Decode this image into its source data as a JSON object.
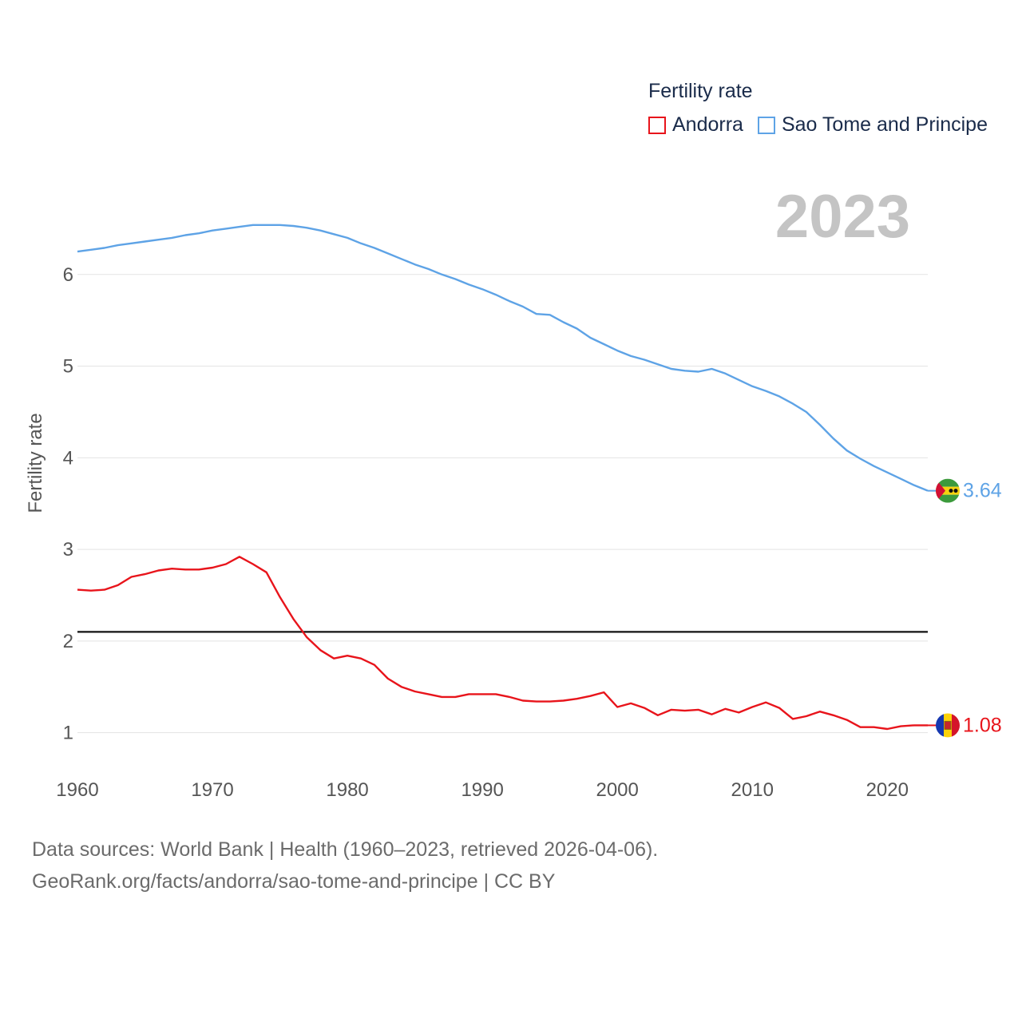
{
  "legend": {
    "title": "Fertility rate",
    "items": [
      {
        "label": "Andorra",
        "color": "#e8141b"
      },
      {
        "label": "Sao Tome and Principe",
        "color": "#5ea3e6"
      }
    ]
  },
  "current_year": "2023",
  "source": {
    "line1": "Data sources: World Bank | Health (1960–2023, retrieved 2026-04-06).",
    "line2": "GeoRank.org/facts/andorra/sao-tome-and-principe | CC BY"
  },
  "chart_data": {
    "type": "line",
    "title": "Fertility rate",
    "xlabel": "",
    "ylabel": "Fertility rate",
    "xlim": [
      1960,
      2023
    ],
    "ylim": [
      0.5,
      6.8
    ],
    "x_ticks": [
      1960,
      1970,
      1980,
      1990,
      2000,
      2010,
      2020
    ],
    "y_ticks": [
      1,
      2,
      3,
      4,
      5,
      6
    ],
    "grid": true,
    "reference_line": {
      "value": 2.1,
      "color": "#111111"
    },
    "x": [
      1960,
      1961,
      1962,
      1963,
      1964,
      1965,
      1966,
      1967,
      1968,
      1969,
      1970,
      1971,
      1972,
      1973,
      1974,
      1975,
      1976,
      1977,
      1978,
      1979,
      1980,
      1981,
      1982,
      1983,
      1984,
      1985,
      1986,
      1987,
      1988,
      1989,
      1990,
      1991,
      1992,
      1993,
      1994,
      1995,
      1996,
      1997,
      1998,
      1999,
      2000,
      2001,
      2002,
      2003,
      2004,
      2005,
      2006,
      2007,
      2008,
      2009,
      2010,
      2011,
      2012,
      2013,
      2014,
      2015,
      2016,
      2017,
      2018,
      2019,
      2020,
      2021,
      2022,
      2023
    ],
    "series": [
      {
        "name": "Andorra",
        "color": "#e8141b",
        "end_label": "1.08",
        "values": [
          2.56,
          2.55,
          2.56,
          2.61,
          2.7,
          2.73,
          2.77,
          2.79,
          2.78,
          2.78,
          2.8,
          2.84,
          2.92,
          2.84,
          2.75,
          2.48,
          2.24,
          2.04,
          1.9,
          1.81,
          1.84,
          1.81,
          1.74,
          1.59,
          1.5,
          1.45,
          1.42,
          1.39,
          1.39,
          1.42,
          1.42,
          1.42,
          1.39,
          1.35,
          1.34,
          1.34,
          1.35,
          1.37,
          1.4,
          1.44,
          1.28,
          1.32,
          1.27,
          1.19,
          1.25,
          1.24,
          1.25,
          1.2,
          1.26,
          1.22,
          1.28,
          1.33,
          1.27,
          1.15,
          1.18,
          1.23,
          1.19,
          1.14,
          1.06,
          1.06,
          1.04,
          1.07,
          1.08,
          1.08
        ]
      },
      {
        "name": "Sao Tome and Principe",
        "color": "#5ea3e6",
        "end_label": "3.64",
        "values": [
          6.25,
          6.27,
          6.29,
          6.32,
          6.34,
          6.36,
          6.38,
          6.4,
          6.43,
          6.45,
          6.48,
          6.5,
          6.52,
          6.54,
          6.54,
          6.54,
          6.53,
          6.51,
          6.48,
          6.44,
          6.4,
          6.34,
          6.29,
          6.23,
          6.17,
          6.11,
          6.06,
          6.0,
          5.95,
          5.89,
          5.84,
          5.78,
          5.71,
          5.65,
          5.57,
          5.56,
          5.48,
          5.41,
          5.31,
          5.24,
          5.17,
          5.11,
          5.07,
          5.02,
          4.97,
          4.95,
          4.94,
          4.97,
          4.92,
          4.85,
          4.78,
          4.73,
          4.67,
          4.59,
          4.5,
          4.36,
          4.21,
          4.08,
          3.99,
          3.91,
          3.84,
          3.77,
          3.7,
          3.64
        ]
      }
    ]
  }
}
